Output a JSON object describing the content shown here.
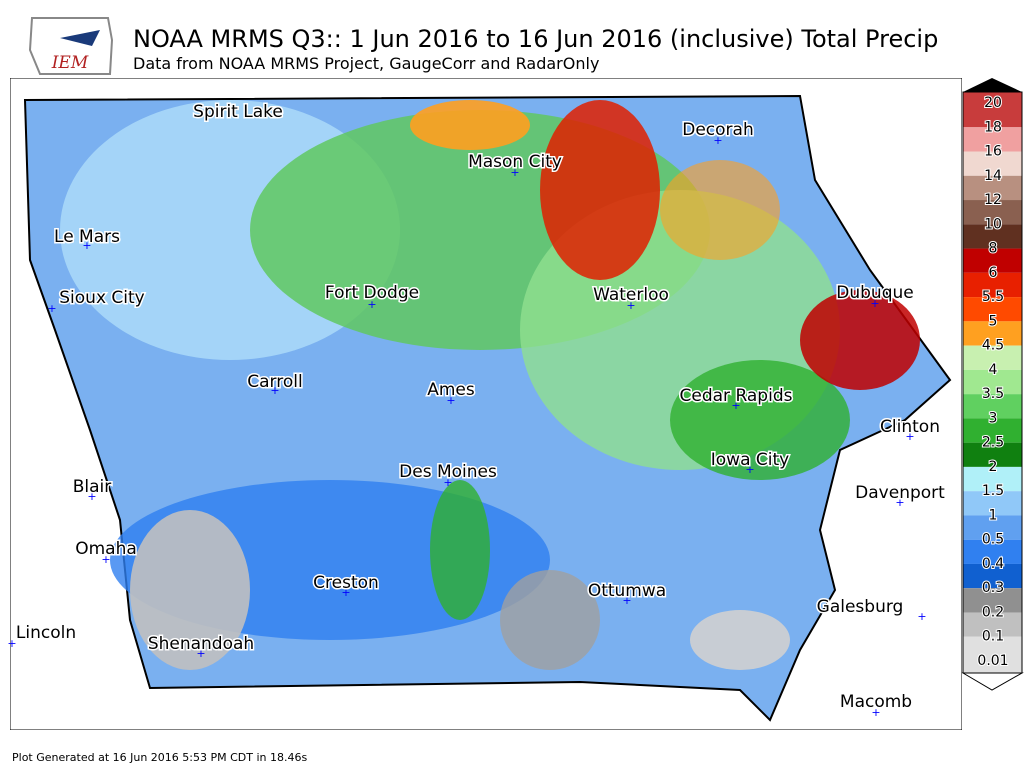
{
  "header": {
    "logo": "IEM",
    "title": "NOAA MRMS Q3:: 1 Jun 2016 to 16 Jun 2016 (inclusive) Total Precip",
    "subtitle": "Data from NOAA MRMS Project, GaugeCorr and RadarOnly"
  },
  "cities": [
    "Spirit Lake",
    "Decorah",
    "Mason City",
    "Le Mars",
    "Sioux City",
    "Fort Dodge",
    "Waterloo",
    "Dubuque",
    "Carroll",
    "Ames",
    "Cedar Rapids",
    "Clinton",
    "Iowa City",
    "Des Moines",
    "Davenport",
    "Blair",
    "Omaha",
    "Creston",
    "Ottumwa",
    "Galesburg",
    "Lincoln",
    "Shenandoah",
    "Macomb"
  ],
  "legend": {
    "labels": [
      "20",
      "18",
      "16",
      "14",
      "12",
      "10",
      "8",
      "6",
      "5.5",
      "5",
      "4.5",
      "4",
      "3.5",
      "3",
      "2.5",
      "2",
      "1.5",
      "1",
      "0.5",
      "0.4",
      "0.3",
      "0.2",
      "0.1",
      "0.01"
    ],
    "colors": [
      "#c83c3c",
      "#f0a0a0",
      "#f0d8d0",
      "#b89080",
      "#8a6050",
      "#603020",
      "#c00000",
      "#e82000",
      "#ff4a00",
      "#ffa020",
      "#c8f0b0",
      "#a0e890",
      "#60d060",
      "#30b030",
      "#108010",
      "#b0f0f8",
      "#90c8f8",
      "#60a0f0",
      "#3080f0",
      "#1060d0",
      "#909090",
      "#c0c0c0",
      "#e0e0e0"
    ]
  },
  "footer": "Plot Generated at 16 Jun 2016 5:53 PM CDT in 18.46s"
}
